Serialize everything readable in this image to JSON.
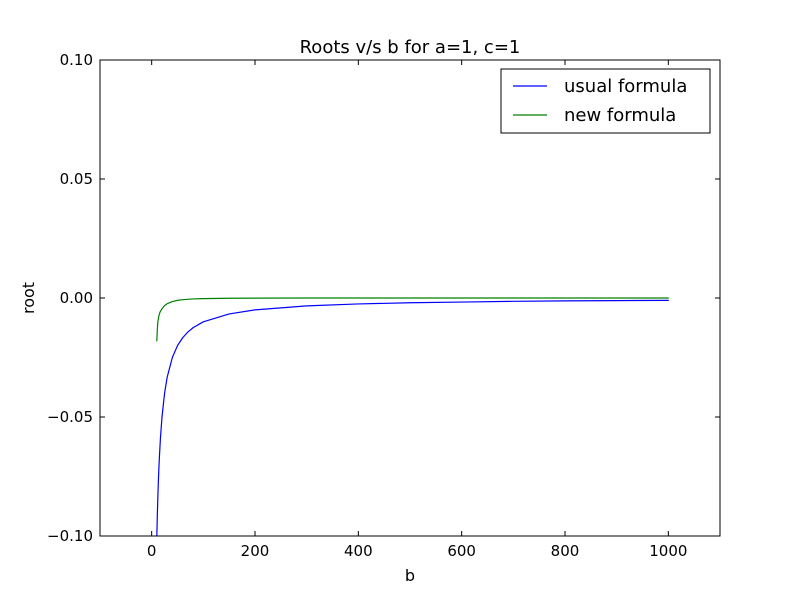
{
  "chart_data": {
    "type": "line",
    "title": "Roots v/s b for a=1, c=1",
    "xlabel": "b",
    "ylabel": "root",
    "xlim": [
      -100,
      1100
    ],
    "ylim": [
      -0.1,
      0.1
    ],
    "x_ticks": [
      0,
      200,
      400,
      600,
      800,
      1000
    ],
    "x_tick_labels": [
      "0",
      "200",
      "400",
      "600",
      "800",
      "1000"
    ],
    "y_ticks": [
      0.1,
      0.05,
      0.0,
      -0.05,
      -0.1
    ],
    "y_tick_labels": [
      "0.10",
      "0.05",
      "0.00",
      "−0.05",
      "−0.10"
    ],
    "legend_position": "top-right",
    "grid": false,
    "series": [
      {
        "name": "usual formula",
        "color": "#0000ff",
        "x": [
          10,
          11,
          12,
          13,
          14,
          15,
          17,
          20,
          25,
          30,
          40,
          50,
          60,
          70,
          80,
          100,
          150,
          200,
          300,
          400,
          500,
          600,
          700,
          800,
          900,
          1000
        ],
        "y": [
          -0.1,
          -0.0909,
          -0.0833,
          -0.0769,
          -0.0714,
          -0.0667,
          -0.0588,
          -0.05,
          -0.04,
          -0.0333,
          -0.025,
          -0.02,
          -0.0167,
          -0.0143,
          -0.0125,
          -0.01,
          -0.0067,
          -0.005,
          -0.0033,
          -0.0025,
          -0.002,
          -0.0017,
          -0.0014,
          -0.0012,
          -0.0011,
          -0.001
        ]
      },
      {
        "name": "new formula",
        "color": "#008000",
        "x": [
          10,
          11,
          12,
          14,
          16,
          20,
          25,
          30,
          40,
          50,
          60,
          80,
          100,
          150,
          200,
          300,
          400,
          600,
          800,
          1000
        ],
        "y": [
          -0.018,
          -0.013,
          -0.01,
          -0.0075,
          -0.006,
          -0.0045,
          -0.0032,
          -0.0024,
          -0.0015,
          -0.001,
          -0.0007,
          -0.0004,
          -0.00025,
          -0.0001,
          -5e-05,
          0.0,
          0.0,
          0.0,
          0.0,
          0.0
        ]
      }
    ]
  }
}
